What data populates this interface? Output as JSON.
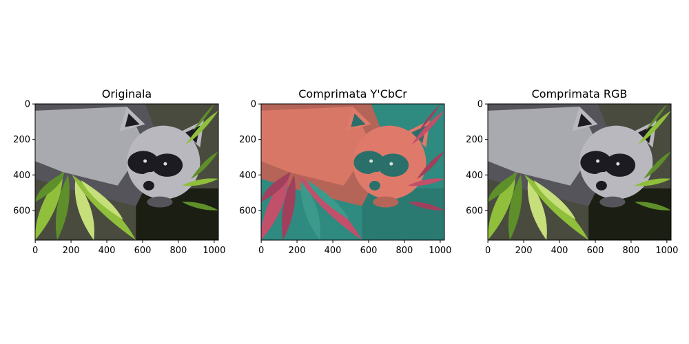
{
  "figure": {
    "panels": [
      {
        "id": "original",
        "title": "Originala",
        "image_subject": "raccoon-on-palm-leaves",
        "palette": "natural",
        "x_ticks": [
          "0",
          "200",
          "400",
          "600",
          "800",
          "1000"
        ],
        "y_ticks": [
          "0",
          "200",
          "400",
          "600"
        ]
      },
      {
        "id": "ycbcr",
        "title": "Comprimata Y'CbCr",
        "image_subject": "raccoon-on-palm-leaves",
        "palette": "false-color-ycbcr",
        "x_ticks": [
          "0",
          "200",
          "400",
          "600",
          "800",
          "1000"
        ],
        "y_ticks": [
          "0",
          "200",
          "400",
          "600"
        ]
      },
      {
        "id": "rgb",
        "title": "Comprimata RGB",
        "image_subject": "raccoon-on-palm-leaves",
        "palette": "natural",
        "x_ticks": [
          "0",
          "200",
          "400",
          "600",
          "800",
          "1000"
        ],
        "y_ticks": [
          "0",
          "200",
          "400",
          "600"
        ]
      }
    ],
    "x_tick_values": [
      0,
      200,
      400,
      600,
      800,
      1000
    ],
    "y_tick_values": [
      0,
      200,
      400,
      600
    ],
    "image_width": 1024,
    "image_height": 768,
    "colors": {
      "natural": {
        "bg": "#4a4b3f",
        "fur_light": "#b9b8bf",
        "fur_dark": "#55545a",
        "mask": "#1c1b22",
        "leaf_a": "#8fbf3b",
        "leaf_b": "#5e8f2a",
        "leaf_c": "#c7df7a",
        "shadow": "#1b1e12"
      },
      "false-color-ycbcr": {
        "bg": "#2f8a80",
        "fur_light": "#df7a6a",
        "fur_dark": "#b56558",
        "mask": "#2a6f6a",
        "leaf_a": "#c2506a",
        "leaf_b": "#a0405c",
        "leaf_c": "#3c9a8c",
        "shadow": "#2a7a72"
      }
    }
  }
}
